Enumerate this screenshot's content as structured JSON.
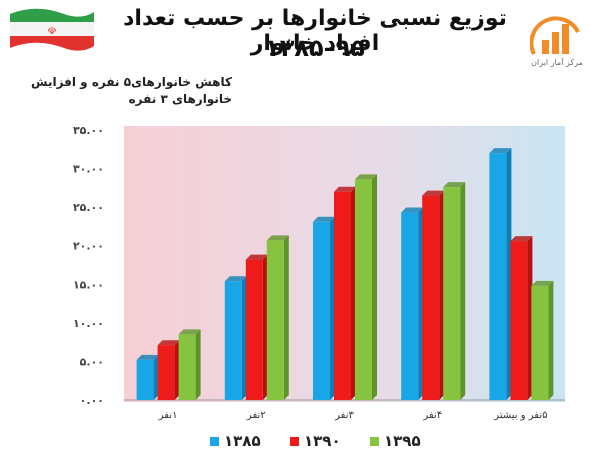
{
  "title": "توزیع نسبی خانوارها بر حسب تعداد افراد خانوار",
  "subtitle": "۱۳۸۵–۹۵",
  "annotation": [
    "کاهش خانوارهای۵ نفره و افزایش",
    "خانوارهای ۳ نفره"
  ],
  "logo_text": "مرکز آمار ایران",
  "colors": {
    "s1385": "#18a6e6",
    "s1390": "#ee1b1b",
    "s1395": "#86c440",
    "bg_left": "#f6cfd5",
    "bg_right": "#cde6f2"
  },
  "chart_data": {
    "type": "bar",
    "categories": [
      "۱نفر",
      "۲نفر",
      "۳نفر",
      "۴نفر",
      "۵نفر و بیشتر"
    ],
    "series": [
      {
        "name": "۱۳۸۵",
        "values": [
          5.2,
          15.4,
          23.1,
          24.3,
          32.0
        ]
      },
      {
        "name": "۱۳۹۰",
        "values": [
          7.1,
          18.2,
          27.0,
          26.5,
          20.6
        ]
      },
      {
        "name": "۱۳۹۵",
        "values": [
          8.5,
          20.7,
          28.6,
          27.6,
          14.8
        ]
      }
    ],
    "yticks": [
      "۰.۰۰",
      "۵.۰۰",
      "۱۰.۰۰",
      "۱۵.۰۰",
      "۲۰.۰۰",
      "۲۵.۰۰",
      "۳۰.۰۰",
      "۳۵.۰۰"
    ],
    "ylim": [
      0,
      35
    ],
    "legend": "bottom",
    "grid": false
  }
}
